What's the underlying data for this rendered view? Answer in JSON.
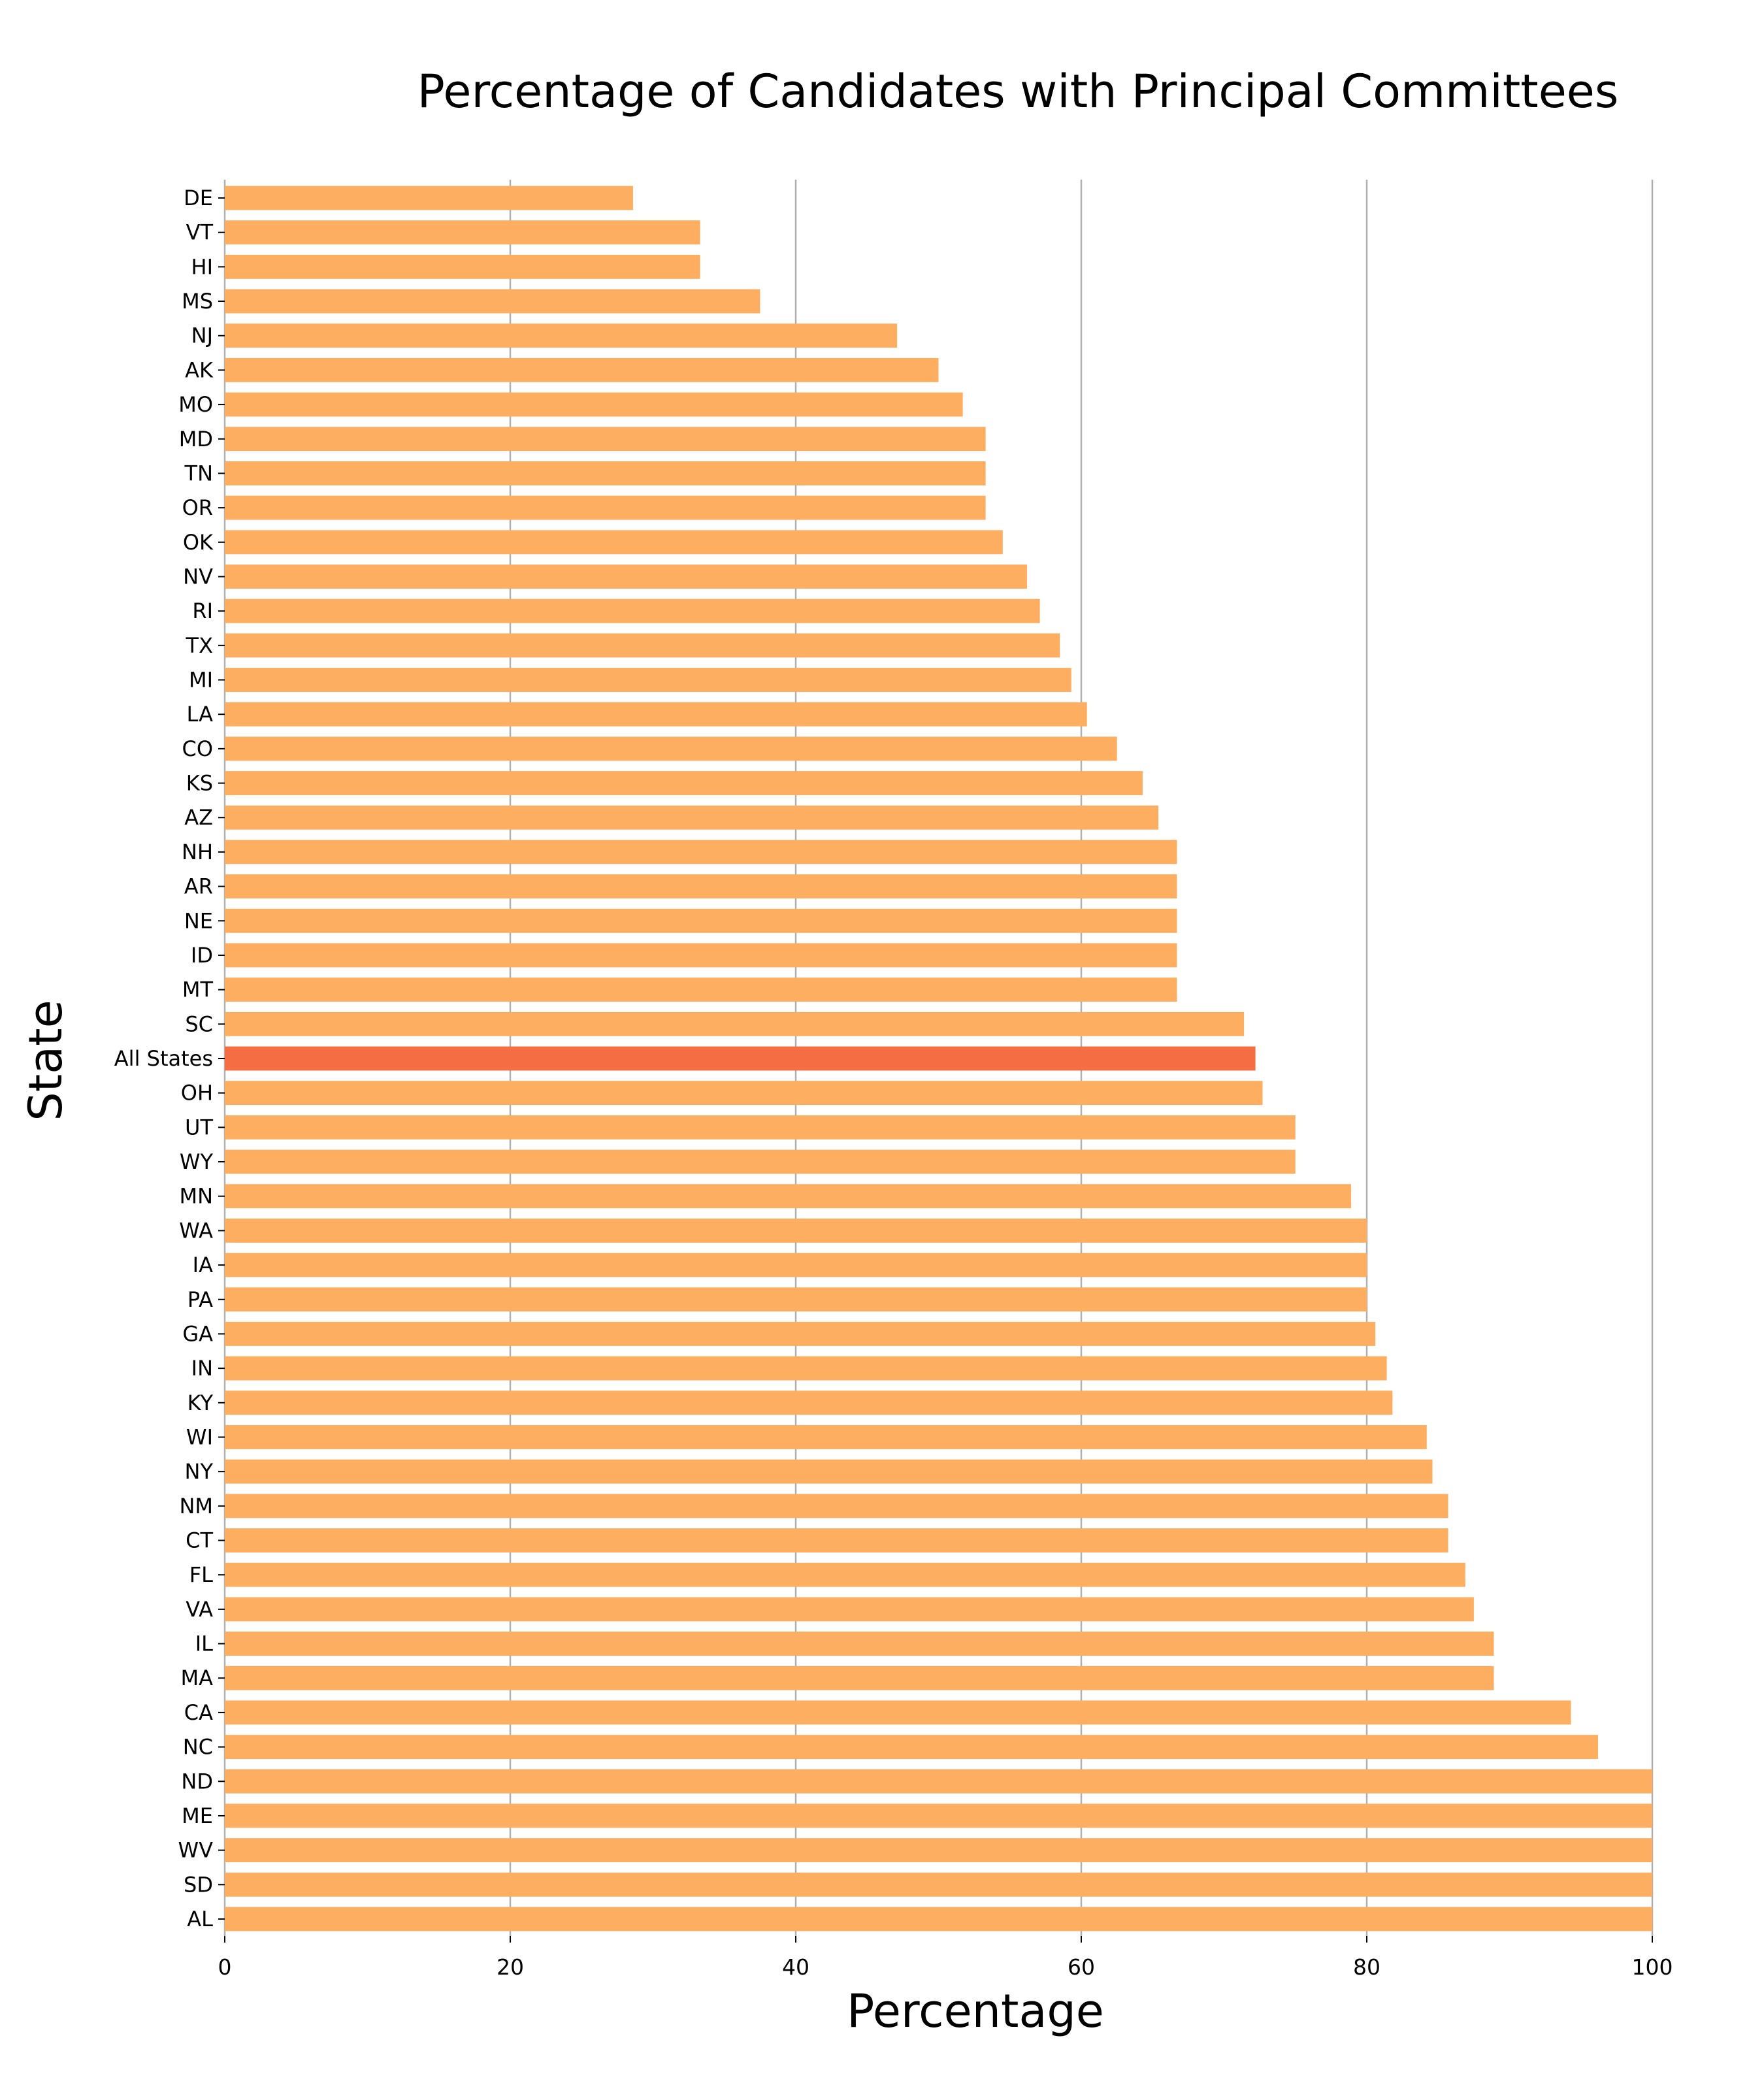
{
  "chart_data": {
    "type": "bar",
    "orientation": "horizontal",
    "title": "Percentage of Candidates with Principal Committees",
    "xlabel": "Percentage",
    "ylabel": "State",
    "xlim": [
      0,
      100
    ],
    "xticks": [
      0,
      20,
      40,
      60,
      80,
      100
    ],
    "grid": "vertical",
    "colors": {
      "bar": "#FDAE61",
      "highlight": "#F46D43",
      "grid": "#B0B0B0"
    },
    "highlight_category": "All States",
    "categories": [
      "DE",
      "VT",
      "HI",
      "MS",
      "NJ",
      "AK",
      "MO",
      "MD",
      "TN",
      "OR",
      "OK",
      "NV",
      "RI",
      "TX",
      "MI",
      "LA",
      "CO",
      "KS",
      "AZ",
      "NH",
      "AR",
      "NE",
      "ID",
      "MT",
      "SC",
      "All States",
      "OH",
      "UT",
      "WY",
      "MN",
      "WA",
      "IA",
      "PA",
      "GA",
      "IN",
      "KY",
      "WI",
      "NY",
      "NM",
      "CT",
      "FL",
      "VA",
      "IL",
      "MA",
      "CA",
      "NC",
      "ND",
      "ME",
      "WV",
      "SD",
      "AL"
    ],
    "values": [
      28.6,
      33.3,
      33.3,
      37.5,
      47.1,
      50.0,
      51.7,
      53.3,
      53.3,
      53.3,
      54.5,
      56.2,
      57.1,
      58.5,
      59.3,
      60.4,
      62.5,
      64.3,
      65.4,
      66.7,
      66.7,
      66.7,
      66.7,
      66.7,
      71.4,
      72.2,
      72.7,
      75.0,
      75.0,
      78.9,
      80.0,
      80.0,
      80.0,
      80.6,
      81.4,
      81.8,
      84.2,
      84.6,
      85.7,
      85.7,
      86.9,
      87.5,
      88.9,
      88.9,
      94.3,
      96.2,
      100,
      100,
      100,
      100,
      100
    ]
  }
}
